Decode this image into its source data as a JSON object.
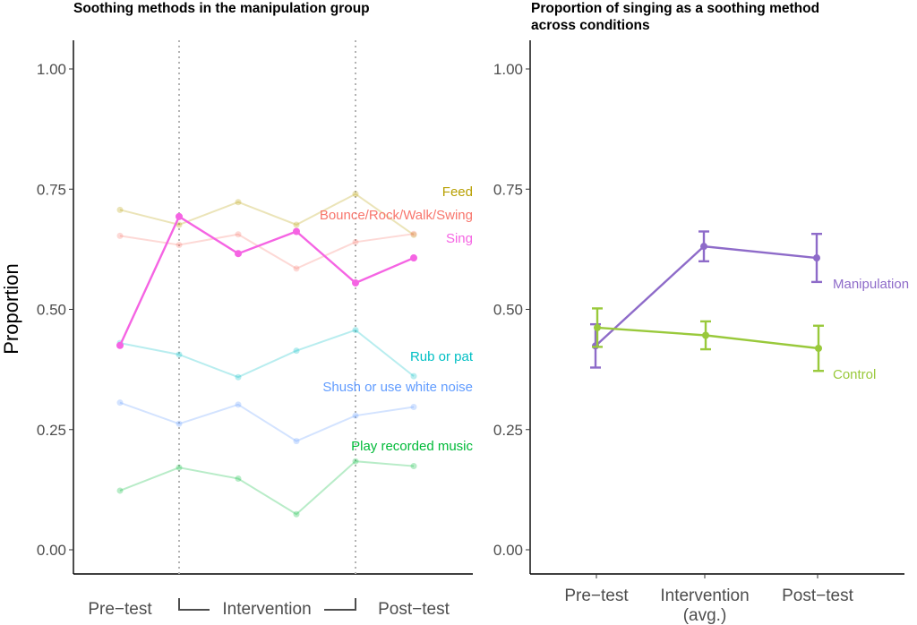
{
  "chart_data": [
    {
      "type": "line",
      "title": "Soothing methods in the manipulation group",
      "ylabel": "Proportion",
      "ylim": [
        0,
        1
      ],
      "yticks": [
        0,
        0.25,
        0.5,
        0.75,
        1
      ],
      "ytick_labels": [
        "0.00",
        "0.25",
        "0.50",
        "0.75",
        "1.00"
      ],
      "x_labels": [
        "Pre−test",
        "Intervention",
        "Post−test"
      ],
      "n_sessions": 6,
      "phase_dividers_after": [
        1,
        4
      ],
      "series": [
        {
          "name": "Feed",
          "color": "#b79f00",
          "highlight": false,
          "values": [
            0.707,
            0.676,
            0.723,
            0.676,
            0.74,
            0.655
          ]
        },
        {
          "name": "Bounce/Rock/Walk/Swing",
          "color": "#f8766d",
          "highlight": false,
          "values": [
            0.653,
            0.634,
            0.656,
            0.585,
            0.64,
            0.657
          ]
        },
        {
          "name": "Sing",
          "color": "#f564e3",
          "highlight": true,
          "values": [
            0.425,
            0.693,
            0.616,
            0.662,
            0.555,
            0.607
          ]
        },
        {
          "name": "Rub or pat",
          "color": "#00bfc4",
          "highlight": false,
          "values": [
            0.43,
            0.406,
            0.359,
            0.414,
            0.457,
            0.361
          ]
        },
        {
          "name": "Shush or use white noise",
          "color": "#619cff",
          "highlight": false,
          "values": [
            0.306,
            0.262,
            0.302,
            0.226,
            0.279,
            0.297
          ]
        },
        {
          "name": "Play recorded music",
          "color": "#00ba38",
          "highlight": false,
          "values": [
            0.123,
            0.171,
            0.148,
            0.074,
            0.184,
            0.174
          ]
        }
      ]
    },
    {
      "type": "line",
      "title": "Proportion of singing as a soothing method across conditions",
      "title_lines": [
        "Proportion of singing as a soothing method",
        "across conditions"
      ],
      "ylabel": "",
      "ylim": [
        0,
        1
      ],
      "yticks": [
        0,
        0.25,
        0.5,
        0.75,
        1
      ],
      "ytick_labels": [
        "0.00",
        "0.25",
        "0.50",
        "0.75",
        "1.00"
      ],
      "categories": [
        "Pre−test",
        "Intervention\n(avg.)",
        "Post−test"
      ],
      "series": [
        {
          "name": "Manipulation",
          "color": "#8e6bc9",
          "values": [
            0.424,
            0.631,
            0.607
          ],
          "lower": [
            0.379,
            0.6,
            0.557
          ],
          "upper": [
            0.469,
            0.662,
            0.657
          ]
        },
        {
          "name": "Control",
          "color": "#99c93b",
          "values": [
            0.462,
            0.446,
            0.419
          ],
          "lower": [
            0.422,
            0.417,
            0.372
          ],
          "upper": [
            0.502,
            0.475,
            0.466
          ]
        }
      ]
    }
  ]
}
